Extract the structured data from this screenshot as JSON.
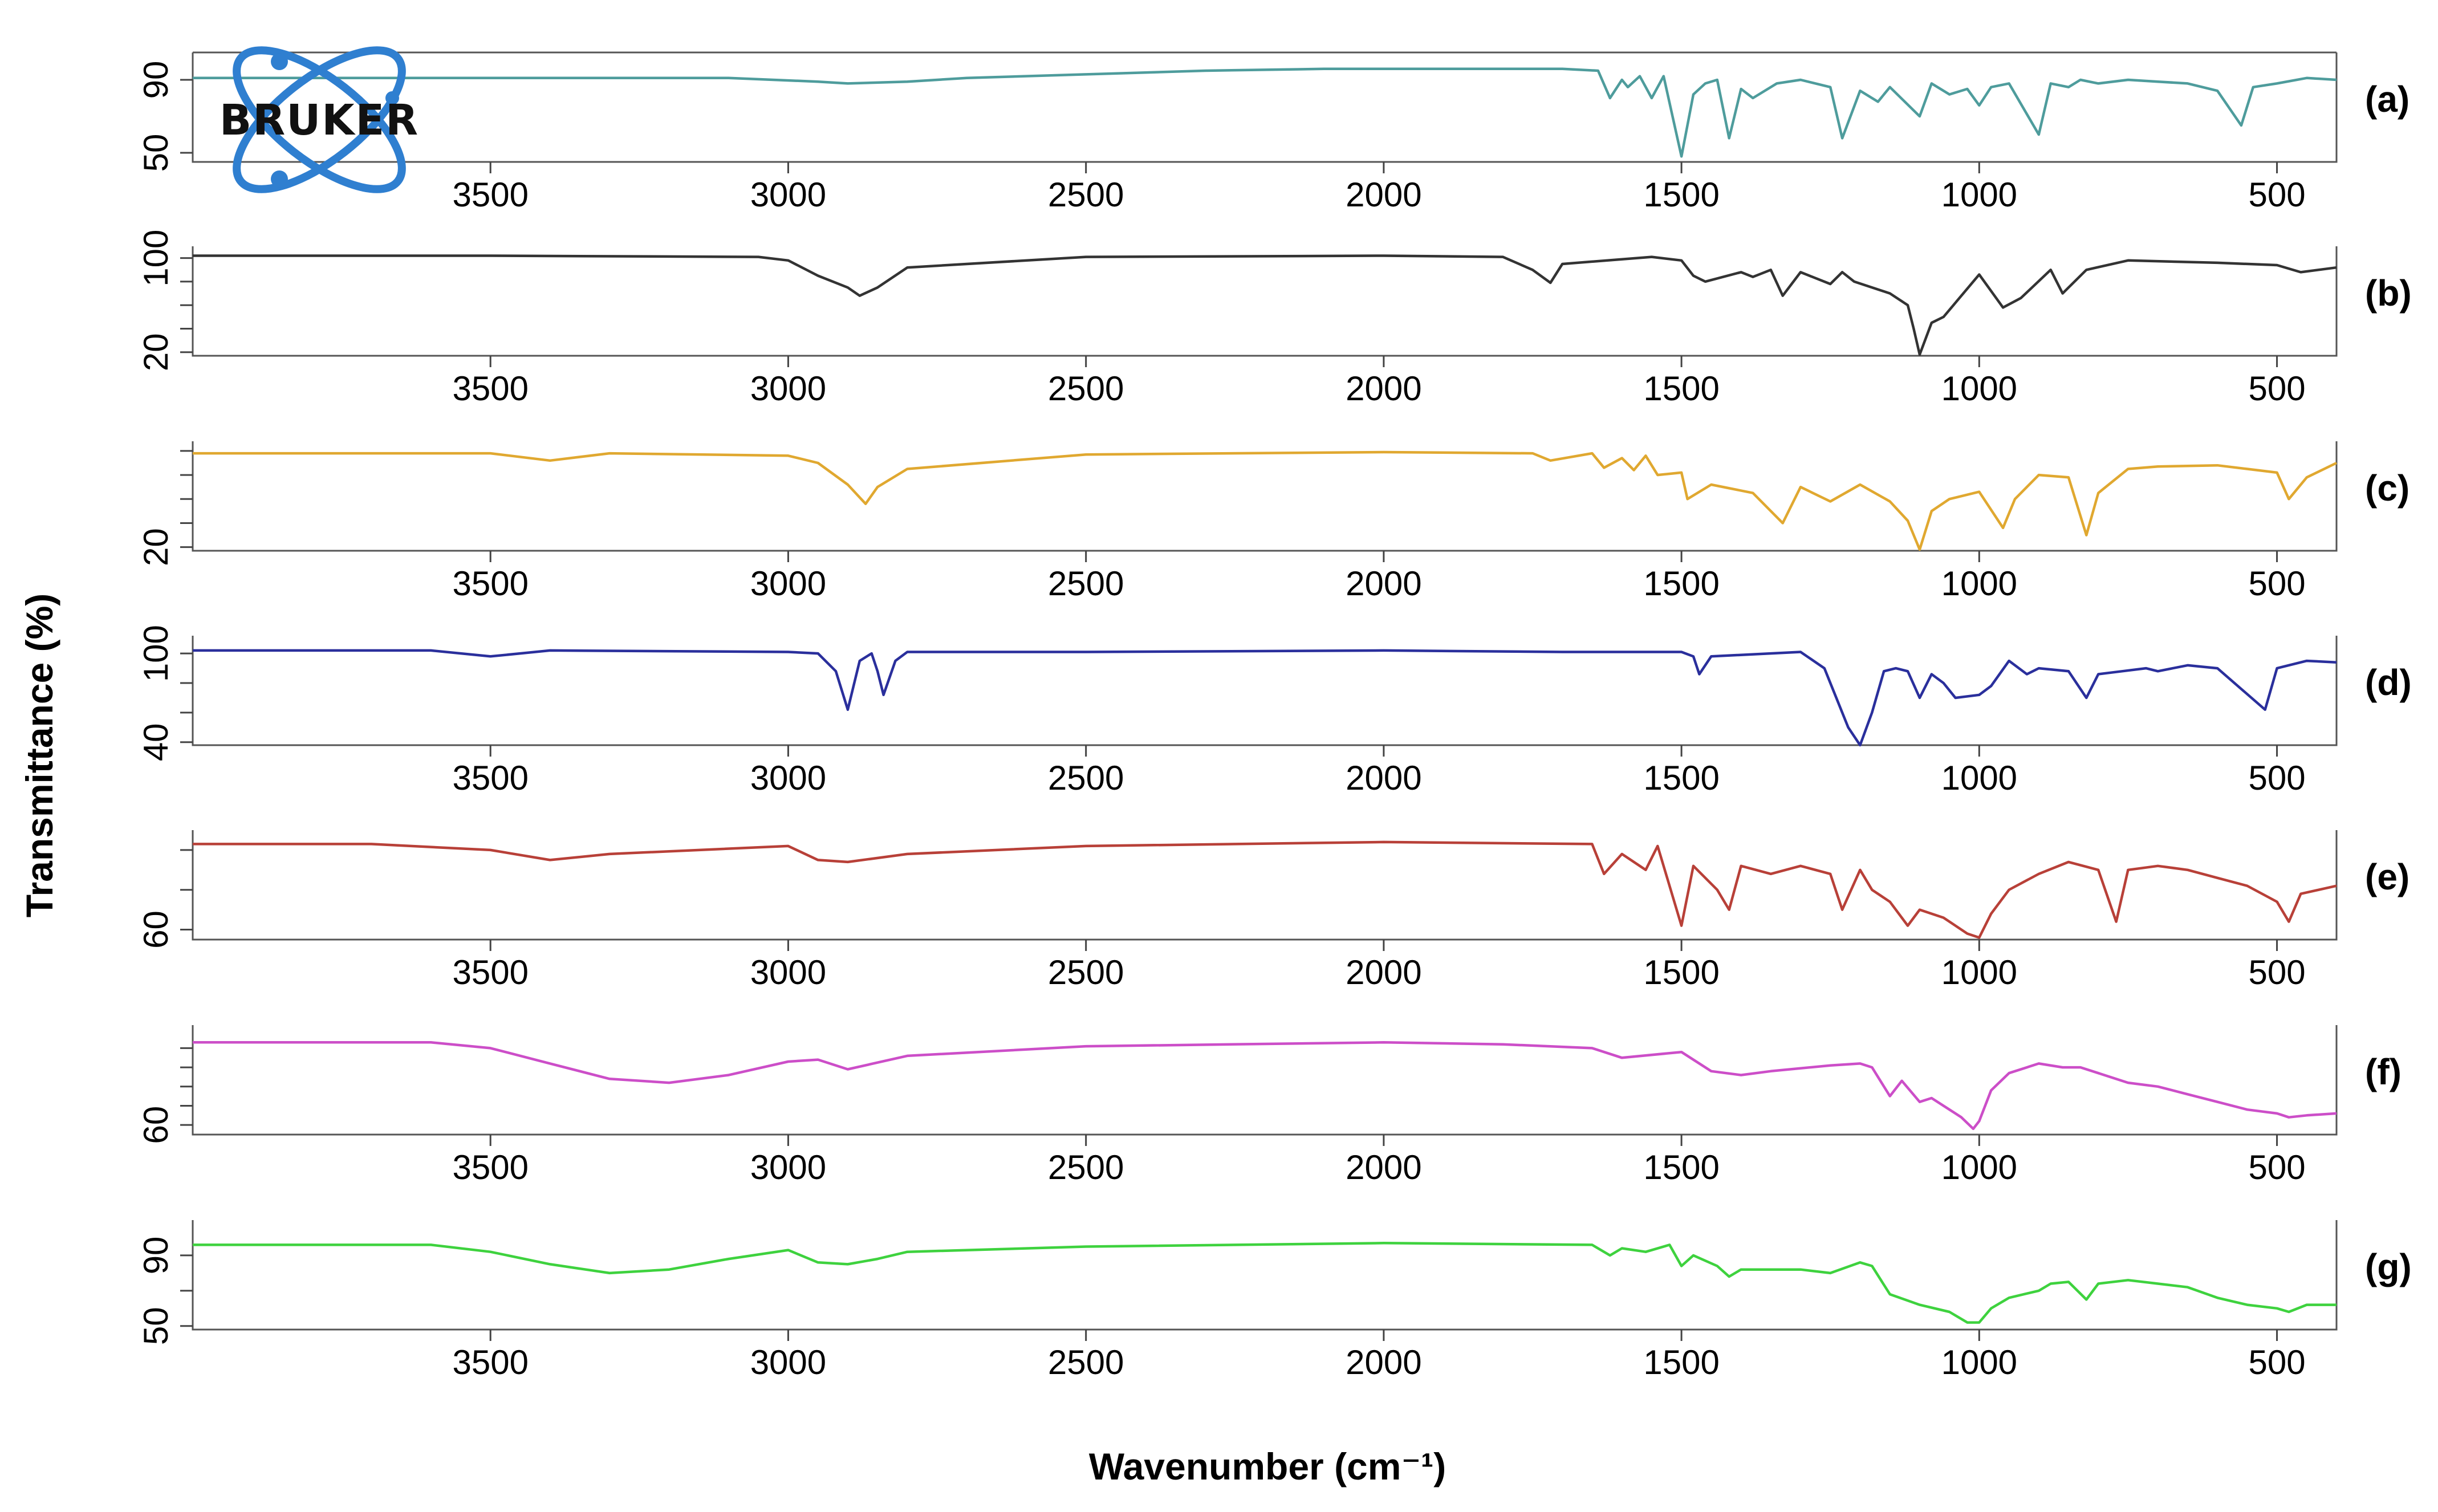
{
  "logo": {
    "text": "BRUKER",
    "color": "#2f7fd0"
  },
  "chart_data": {
    "type": "line",
    "xlabel": "Wavenumber (cm⁻¹)",
    "ylabel": "Transmittance (%)",
    "xlim": [
      4000,
      400
    ],
    "x_ticks": [
      3500,
      3000,
      2500,
      2000,
      1500,
      1000,
      500
    ],
    "panels": [
      {
        "tag": "(a)",
        "color": "#4e9c9c",
        "ylim": [
          45,
          105
        ],
        "y_ticks": [
          50,
          90
        ],
        "y_tick_labels": [
          "50",
          "90"
        ],
        "x": [
          4000,
          3850,
          3700,
          3500,
          3300,
          3100,
          2950,
          2900,
          2800,
          2700,
          2500,
          2300,
          2100,
          1900,
          1700,
          1640,
          1620,
          1600,
          1590,
          1570,
          1550,
          1530,
          1500,
          1480,
          1460,
          1440,
          1420,
          1400,
          1380,
          1340,
          1300,
          1250,
          1230,
          1200,
          1170,
          1150,
          1100,
          1080,
          1050,
          1020,
          1000,
          980,
          950,
          900,
          880,
          850,
          830,
          800,
          750,
          700,
          650,
          600,
          560,
          540,
          500,
          450,
          400
        ],
        "values": [
          91,
          91,
          91,
          91,
          91,
          91,
          89,
          88,
          89,
          91,
          93,
          95,
          96,
          96,
          96,
          95,
          80,
          90,
          86,
          92,
          80,
          92,
          48,
          82,
          88,
          90,
          58,
          85,
          80,
          88,
          90,
          86,
          58,
          84,
          78,
          86,
          70,
          88,
          82,
          85,
          76,
          86,
          88,
          60,
          88,
          86,
          90,
          88,
          90,
          89,
          88,
          84,
          65,
          86,
          88,
          91,
          90
        ]
      },
      {
        "tag": "(b)",
        "color": "#333333",
        "ylim": [
          17,
          110
        ],
        "y_ticks": [
          20,
          40,
          60,
          80,
          100
        ],
        "y_tick_labels": [
          "20",
          "",
          "",
          "",
          "100"
        ],
        "x": [
          4000,
          3500,
          3050,
          3000,
          2950,
          2900,
          2880,
          2850,
          2800,
          2500,
          2000,
          1800,
          1750,
          1720,
          1700,
          1550,
          1500,
          1480,
          1460,
          1400,
          1380,
          1350,
          1330,
          1300,
          1280,
          1250,
          1230,
          1210,
          1150,
          1120,
          1110,
          1100,
          1080,
          1060,
          1000,
          960,
          930,
          880,
          860,
          820,
          750,
          600,
          500,
          460,
          400
        ],
        "values": [
          102,
          102,
          101,
          98,
          85,
          75,
          68,
          75,
          92,
          101,
          102,
          101,
          90,
          79,
          95,
          101,
          98,
          85,
          80,
          88,
          84,
          90,
          68,
          88,
          84,
          78,
          88,
          80,
          70,
          60,
          40,
          18,
          45,
          50,
          86,
          58,
          66,
          90,
          70,
          90,
          98,
          96,
          94,
          88,
          92
        ]
      },
      {
        "tag": "(c)",
        "color": "#e0a830",
        "ylim": [
          17,
          108
        ],
        "y_ticks": [
          20,
          40,
          60,
          80,
          100
        ],
        "y_tick_labels": [
          "20",
          "",
          "",
          "",
          ""
        ],
        "x": [
          4000,
          3500,
          3400,
          3300,
          3000,
          2950,
          2900,
          2870,
          2850,
          2800,
          2500,
          2000,
          1750,
          1720,
          1650,
          1630,
          1600,
          1580,
          1560,
          1540,
          1500,
          1490,
          1450,
          1380,
          1330,
          1300,
          1250,
          1200,
          1150,
          1120,
          1100,
          1080,
          1050,
          1000,
          960,
          940,
          900,
          850,
          820,
          800,
          750,
          700,
          600,
          550,
          500,
          480,
          450,
          400
        ],
        "values": [
          98,
          98,
          92,
          98,
          96,
          90,
          72,
          56,
          70,
          85,
          97,
          99,
          98,
          92,
          98,
          86,
          94,
          84,
          96,
          80,
          82,
          60,
          72,
          65,
          40,
          70,
          58,
          72,
          58,
          42,
          18,
          50,
          60,
          66,
          36,
          60,
          80,
          78,
          30,
          65,
          85,
          87,
          88,
          85,
          82,
          60,
          78,
          90
        ]
      },
      {
        "tag": "(d)",
        "color": "#2a2f9c",
        "ylim": [
          38,
          112
        ],
        "y_ticks": [
          40,
          60,
          80,
          100
        ],
        "y_tick_labels": [
          "40",
          "",
          "",
          "100"
        ],
        "x": [
          4000,
          3600,
          3500,
          3400,
          3000,
          2950,
          2920,
          2900,
          2880,
          2860,
          2850,
          2840,
          2820,
          2800,
          2500,
          2000,
          1700,
          1500,
          1480,
          1470,
          1450,
          1300,
          1260,
          1240,
          1220,
          1200,
          1180,
          1160,
          1140,
          1120,
          1100,
          1080,
          1060,
          1040,
          1000,
          980,
          950,
          920,
          900,
          850,
          820,
          800,
          760,
          720,
          700,
          650,
          600,
          560,
          520,
          500,
          450,
          400
        ],
        "values": [
          102,
          102,
          98,
          102,
          101,
          100,
          88,
          62,
          95,
          100,
          88,
          72,
          95,
          101,
          101,
          102,
          101,
          101,
          98,
          86,
          98,
          101,
          90,
          70,
          50,
          38,
          60,
          88,
          90,
          88,
          70,
          86,
          80,
          70,
          72,
          78,
          95,
          86,
          90,
          88,
          70,
          86,
          88,
          90,
          88,
          92,
          90,
          76,
          62,
          90,
          95,
          94
        ]
      },
      {
        "tag": "(e)",
        "color": "#b84038",
        "ylim": [
          55,
          110
        ],
        "y_ticks": [
          60,
          80,
          100
        ],
        "y_tick_labels": [
          "60",
          "",
          ""
        ],
        "x": [
          4000,
          3700,
          3500,
          3400,
          3300,
          3000,
          2950,
          2900,
          2800,
          2500,
          2000,
          1650,
          1630,
          1600,
          1560,
          1540,
          1500,
          1480,
          1440,
          1420,
          1400,
          1350,
          1300,
          1250,
          1230,
          1200,
          1180,
          1150,
          1120,
          1100,
          1060,
          1020,
          1000,
          980,
          950,
          900,
          850,
          800,
          770,
          750,
          700,
          650,
          600,
          550,
          500,
          480,
          460,
          400
        ],
        "values": [
          103,
          103,
          100,
          95,
          98,
          102,
          95,
          94,
          98,
          102,
          104,
          103,
          88,
          98,
          90,
          102,
          62,
          92,
          80,
          70,
          92,
          88,
          92,
          88,
          70,
          90,
          80,
          74,
          62,
          70,
          66,
          58,
          56,
          68,
          80,
          88,
          94,
          90,
          64,
          90,
          92,
          90,
          86,
          82,
          74,
          64,
          78,
          82
        ]
      },
      {
        "tag": "(f)",
        "color": "#cc4ec8",
        "ylim": [
          55,
          112
        ],
        "y_ticks": [
          60,
          70,
          80,
          90,
          100
        ],
        "y_tick_labels": [
          "60",
          "",
          "",
          "",
          ""
        ],
        "x": [
          4000,
          3700,
          3600,
          3500,
          3400,
          3300,
          3200,
          3100,
          3000,
          2950,
          2900,
          2800,
          2500,
          2000,
          1800,
          1650,
          1600,
          1500,
          1450,
          1400,
          1350,
          1250,
          1200,
          1180,
          1150,
          1130,
          1100,
          1080,
          1050,
          1030,
          1010,
          1000,
          980,
          950,
          900,
          860,
          830,
          800,
          750,
          700,
          650,
          600,
          550,
          500,
          480,
          450,
          400
        ],
        "values": [
          103,
          103,
          103,
          100,
          92,
          84,
          82,
          86,
          93,
          94,
          89,
          96,
          101,
          103,
          102,
          100,
          95,
          98,
          88,
          86,
          88,
          91,
          92,
          90,
          75,
          83,
          72,
          74,
          68,
          64,
          58,
          62,
          78,
          87,
          92,
          90,
          90,
          87,
          82,
          80,
          76,
          72,
          68,
          66,
          64,
          65,
          66
        ]
      },
      {
        "tag": "(g)",
        "color": "#3ed23e",
        "ylim": [
          48,
          110
        ],
        "y_ticks": [
          50,
          70,
          90
        ],
        "y_tick_labels": [
          "50",
          "",
          "90"
        ],
        "x": [
          4000,
          3700,
          3600,
          3500,
          3400,
          3300,
          3200,
          3100,
          3000,
          2950,
          2900,
          2850,
          2800,
          2500,
          2000,
          1650,
          1620,
          1600,
          1560,
          1520,
          1500,
          1480,
          1440,
          1420,
          1400,
          1300,
          1250,
          1200,
          1180,
          1150,
          1100,
          1050,
          1020,
          1000,
          980,
          950,
          900,
          880,
          850,
          820,
          800,
          750,
          700,
          650,
          600,
          550,
          500,
          480,
          450,
          400
        ],
        "values": [
          96,
          96,
          96,
          92,
          85,
          80,
          82,
          88,
          93,
          86,
          85,
          88,
          92,
          95,
          97,
          96,
          90,
          94,
          92,
          96,
          84,
          90,
          84,
          78,
          82,
          82,
          80,
          86,
          84,
          68,
          62,
          58,
          52,
          52,
          60,
          66,
          70,
          74,
          75,
          65,
          74,
          76,
          74,
          72,
          66,
          62,
          60,
          58,
          62,
          62
        ]
      }
    ]
  }
}
